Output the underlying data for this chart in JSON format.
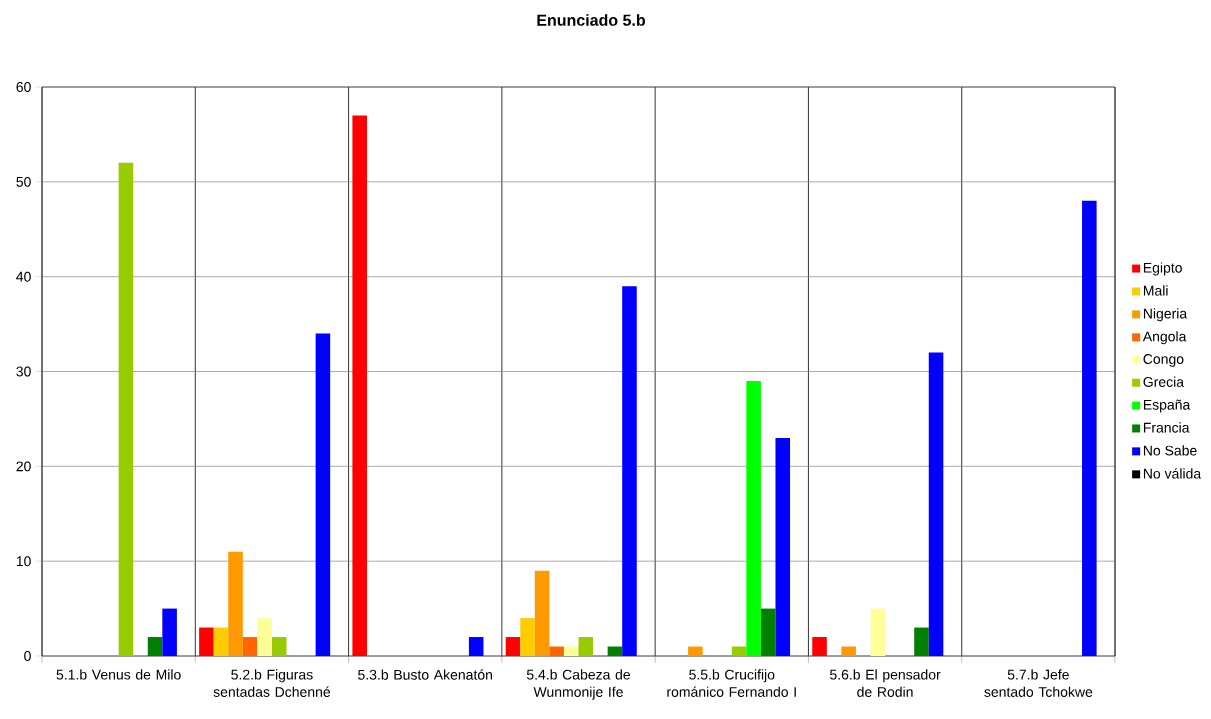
{
  "chart_data": {
    "type": "bar",
    "title": "Enunciado 5.b",
    "categories": [
      "5.1.b Venus  de  Milo",
      "5.2.b Figuras sentadas Dchenné",
      "5.3.b Busto Akenatón",
      "5.4.b Cabeza  de Wunmonije  Ife",
      "5.5.b Crucifijo románico Fernando I",
      "5.6.b El pensador de Rodin",
      "5.7.b Jefe sentado Tchokwe"
    ],
    "series": [
      {
        "name": "Egipto",
        "color": "#ff0000",
        "values": [
          0,
          3,
          57,
          2,
          0,
          2,
          0
        ]
      },
      {
        "name": "Mali",
        "color": "#ffcc00",
        "values": [
          0,
          3,
          0,
          4,
          0,
          0,
          0
        ]
      },
      {
        "name": "Nigeria",
        "color": "#ff9900",
        "values": [
          0,
          11,
          0,
          9,
          1,
          1,
          0
        ]
      },
      {
        "name": "Angola",
        "color": "#ff6600",
        "values": [
          0,
          2,
          0,
          1,
          0,
          0,
          0
        ]
      },
      {
        "name": "Congo",
        "color": "#ffff99",
        "values": [
          0,
          4,
          0,
          1,
          0,
          5,
          0
        ]
      },
      {
        "name": "Grecia",
        "color": "#99cc00",
        "values": [
          52,
          2,
          0,
          2,
          1,
          0,
          0
        ]
      },
      {
        "name": "España",
        "color": "#00ff00",
        "values": [
          0,
          0,
          0,
          0,
          29,
          0,
          0
        ]
      },
      {
        "name": "Francia",
        "color": "#008000",
        "values": [
          2,
          0,
          0,
          1,
          5,
          3,
          0
        ]
      },
      {
        "name": "No Sabe",
        "color": "#0000ff",
        "values": [
          5,
          34,
          2,
          39,
          23,
          32,
          48
        ]
      },
      {
        "name": "No válida",
        "color": "#000000",
        "values": [
          0,
          0,
          0,
          0,
          0,
          0,
          0
        ]
      }
    ],
    "ylim": [
      0,
      60
    ],
    "yticks": [
      0,
      10,
      20,
      30,
      40,
      50,
      60
    ],
    "grid": true,
    "legend": "right"
  }
}
